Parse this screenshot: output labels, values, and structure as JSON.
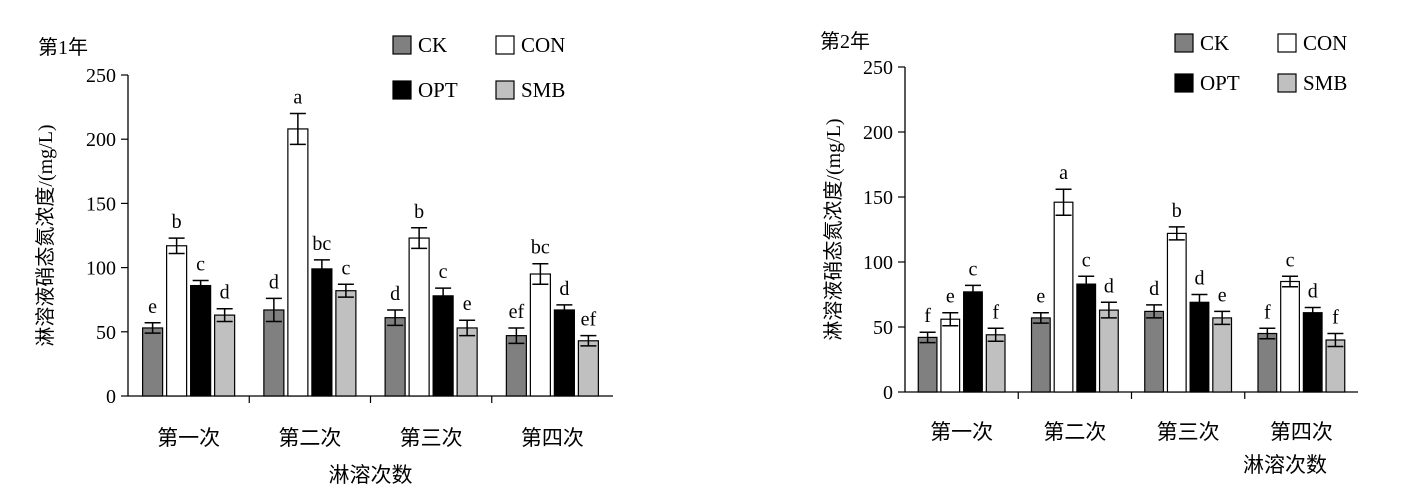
{
  "legend": [
    {
      "name": "CK",
      "color": "#808080"
    },
    {
      "name": "CON",
      "color": "#ffffff"
    },
    {
      "name": "OPT",
      "color": "#000000"
    },
    {
      "name": "SMB",
      "color": "#c0c0c0"
    }
  ],
  "chart_data": [
    {
      "type": "bar",
      "title": "第1年",
      "ylabel": "淋溶液硝态氮浓度/(mg/L)",
      "xlabel": "淋溶次数",
      "ylim": [
        0,
        250
      ],
      "yticks": [
        0,
        50,
        100,
        150,
        200,
        250
      ],
      "categories": [
        "第一次",
        "第二次",
        "第三次",
        "第四次"
      ],
      "legend_position": "top-right",
      "grid": false,
      "series": [
        {
          "name": "CK",
          "values": [
            53,
            67,
            61,
            47
          ],
          "errors": [
            4,
            9,
            6,
            6
          ],
          "labels": [
            "e",
            "d",
            "d",
            "ef"
          ]
        },
        {
          "name": "CON",
          "values": [
            117,
            208,
            123,
            95
          ],
          "errors": [
            6,
            12,
            8,
            8
          ],
          "labels": [
            "b",
            "a",
            "b",
            "bc"
          ]
        },
        {
          "name": "OPT",
          "values": [
            86,
            99,
            78,
            67
          ],
          "errors": [
            4,
            7,
            6,
            4
          ],
          "labels": [
            "c",
            "bc",
            "c",
            "d"
          ]
        },
        {
          "name": "SMB",
          "values": [
            63,
            82,
            53,
            43
          ],
          "errors": [
            5,
            5,
            6,
            4
          ],
          "labels": [
            "d",
            "c",
            "e",
            "ef"
          ]
        }
      ]
    },
    {
      "type": "bar",
      "title": "第2年",
      "ylabel": "淋溶液硝态氮浓度/(mg/L)",
      "xlabel": "淋溶次数",
      "ylim": [
        0,
        250
      ],
      "yticks": [
        0,
        50,
        100,
        150,
        200,
        250
      ],
      "categories": [
        "第一次",
        "第二次",
        "第三次",
        "第四次"
      ],
      "legend_position": "top-right",
      "grid": false,
      "series": [
        {
          "name": "CK",
          "values": [
            42,
            57,
            62,
            45
          ],
          "errors": [
            4,
            4,
            5,
            4
          ],
          "labels": [
            "f",
            "e",
            "d",
            "f"
          ]
        },
        {
          "name": "CON",
          "values": [
            56,
            146,
            122,
            85
          ],
          "errors": [
            5,
            10,
            5,
            4
          ],
          "labels": [
            "e",
            "a",
            "b",
            "c"
          ]
        },
        {
          "name": "OPT",
          "values": [
            77,
            83,
            69,
            61
          ],
          "errors": [
            5,
            6,
            6,
            4
          ],
          "labels": [
            "c",
            "c",
            "d",
            "d"
          ]
        },
        {
          "name": "SMB",
          "values": [
            44,
            63,
            57,
            40
          ],
          "errors": [
            5,
            6,
            5,
            5
          ],
          "labels": [
            "f",
            "d",
            "e",
            "f"
          ]
        }
      ]
    }
  ]
}
